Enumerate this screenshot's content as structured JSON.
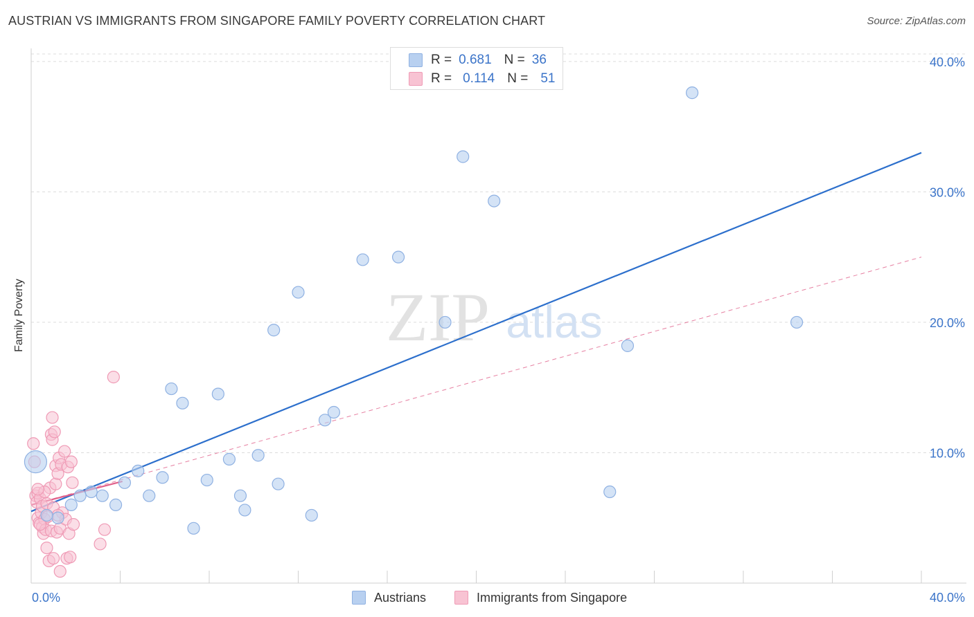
{
  "title": "AUSTRIAN VS IMMIGRANTS FROM SINGAPORE FAMILY POVERTY CORRELATION CHART",
  "source": "Source: ZipAtlas.com",
  "watermark": {
    "zip": "ZIP",
    "atlas": "atlas"
  },
  "legend_top": {
    "rows": [
      {
        "r_label": "R =",
        "r_value": "0.681",
        "n_label": "N =",
        "n_value": "36"
      },
      {
        "r_label": "R =",
        "r_value": "0.114",
        "n_label": "N =",
        "n_value": "51"
      }
    ]
  },
  "legend_bottom": {
    "items": [
      "Austrians",
      "Immigrants from Singapore"
    ]
  },
  "colors": {
    "blue_fill": "#b8d0f0",
    "blue_stroke": "#8fb1e2",
    "blue_line": "#2c6fcc",
    "pink_fill": "#f8c3d3",
    "pink_stroke": "#ef9ab5",
    "pink_line": "#e0608a",
    "axis_text": "#3b74c9",
    "grid": "#dcdcdc"
  },
  "chart_data": {
    "type": "scatter",
    "title": "AUSTRIAN VS IMMIGRANTS FROM SINGAPORE FAMILY POVERTY CORRELATION CHART",
    "xlabel": "",
    "ylabel": "Family Poverty",
    "xlim": [
      0,
      40
    ],
    "ylim": [
      0,
      41
    ],
    "x_tick_labels": [
      "0.0%",
      "40.0%"
    ],
    "y_ticks": [
      10,
      20,
      30,
      40
    ],
    "y_tick_labels": [
      "10.0%",
      "20.0%",
      "30.0%",
      "40.0%"
    ],
    "series": [
      {
        "name": "Austrians",
        "R": 0.681,
        "N": 36,
        "trend": {
          "x": [
            0,
            40
          ],
          "y": [
            5.5,
            33.0
          ],
          "style": "solid"
        },
        "points": [
          {
            "x": 0.2,
            "y": 9.3,
            "big": true
          },
          {
            "x": 1.2,
            "y": 5.0
          },
          {
            "x": 1.8,
            "y": 6.0
          },
          {
            "x": 2.2,
            "y": 6.7
          },
          {
            "x": 2.7,
            "y": 7.0
          },
          {
            "x": 3.2,
            "y": 6.7
          },
          {
            "x": 3.8,
            "y": 6.0
          },
          {
            "x": 4.2,
            "y": 7.7
          },
          {
            "x": 4.8,
            "y": 8.6
          },
          {
            "x": 5.3,
            "y": 6.7
          },
          {
            "x": 5.9,
            "y": 8.1
          },
          {
            "x": 6.3,
            "y": 14.9
          },
          {
            "x": 6.8,
            "y": 13.8
          },
          {
            "x": 7.3,
            "y": 4.2
          },
          {
            "x": 7.9,
            "y": 7.9
          },
          {
            "x": 8.4,
            "y": 14.5
          },
          {
            "x": 8.9,
            "y": 9.5
          },
          {
            "x": 9.4,
            "y": 6.7
          },
          {
            "x": 9.6,
            "y": 5.6
          },
          {
            "x": 10.2,
            "y": 9.8
          },
          {
            "x": 10.9,
            "y": 19.4
          },
          {
            "x": 11.1,
            "y": 7.6
          },
          {
            "x": 12.0,
            "y": 22.3
          },
          {
            "x": 12.6,
            "y": 5.2
          },
          {
            "x": 13.2,
            "y": 12.5
          },
          {
            "x": 13.6,
            "y": 13.1
          },
          {
            "x": 14.9,
            "y": 24.8
          },
          {
            "x": 16.5,
            "y": 25.0
          },
          {
            "x": 18.6,
            "y": 20.0
          },
          {
            "x": 19.4,
            "y": 32.7
          },
          {
            "x": 20.8,
            "y": 29.3
          },
          {
            "x": 26.0,
            "y": 7.0
          },
          {
            "x": 26.8,
            "y": 18.2
          },
          {
            "x": 29.7,
            "y": 37.6
          },
          {
            "x": 34.4,
            "y": 20.0
          },
          {
            "x": 0.7,
            "y": 5.2
          }
        ]
      },
      {
        "name": "Immigrants from Singapore",
        "R": 0.114,
        "N": 51,
        "trend": {
          "x": [
            0,
            4.1
          ],
          "y": [
            6.0,
            7.8
          ],
          "style": "solid"
        },
        "trend_extended": {
          "x": [
            0,
            40
          ],
          "y": [
            6.0,
            25.0
          ],
          "style": "dashed"
        },
        "points": [
          {
            "x": 0.1,
            "y": 10.7
          },
          {
            "x": 0.15,
            "y": 9.3
          },
          {
            "x": 0.2,
            "y": 6.7
          },
          {
            "x": 0.25,
            "y": 6.2
          },
          {
            "x": 0.3,
            "y": 6.9
          },
          {
            "x": 0.3,
            "y": 5.0
          },
          {
            "x": 0.35,
            "y": 4.6
          },
          {
            "x": 0.4,
            "y": 6.5
          },
          {
            "x": 0.45,
            "y": 5.4
          },
          {
            "x": 0.5,
            "y": 4.3
          },
          {
            "x": 0.5,
            "y": 5.9
          },
          {
            "x": 0.55,
            "y": 3.8
          },
          {
            "x": 0.6,
            "y": 4.9
          },
          {
            "x": 0.65,
            "y": 4.1
          },
          {
            "x": 0.7,
            "y": 6.1
          },
          {
            "x": 0.7,
            "y": 2.7
          },
          {
            "x": 0.75,
            "y": 5.1
          },
          {
            "x": 0.8,
            "y": 1.7
          },
          {
            "x": 0.85,
            "y": 7.3
          },
          {
            "x": 0.9,
            "y": 11.4
          },
          {
            "x": 0.9,
            "y": 4.0
          },
          {
            "x": 0.95,
            "y": 12.7
          },
          {
            "x": 0.95,
            "y": 11.0
          },
          {
            "x": 1.0,
            "y": 5.8
          },
          {
            "x": 1.0,
            "y": 1.9
          },
          {
            "x": 1.05,
            "y": 11.6
          },
          {
            "x": 1.1,
            "y": 9.0
          },
          {
            "x": 1.1,
            "y": 7.6
          },
          {
            "x": 1.15,
            "y": 3.9
          },
          {
            "x": 1.2,
            "y": 8.4
          },
          {
            "x": 1.25,
            "y": 9.6
          },
          {
            "x": 1.3,
            "y": 4.2
          },
          {
            "x": 1.3,
            "y": 0.9
          },
          {
            "x": 1.35,
            "y": 9.1
          },
          {
            "x": 1.4,
            "y": 5.4
          },
          {
            "x": 1.5,
            "y": 10.1
          },
          {
            "x": 1.55,
            "y": 4.9
          },
          {
            "x": 1.6,
            "y": 1.9
          },
          {
            "x": 1.65,
            "y": 8.9
          },
          {
            "x": 1.7,
            "y": 3.8
          },
          {
            "x": 1.75,
            "y": 2.0
          },
          {
            "x": 1.8,
            "y": 9.3
          },
          {
            "x": 1.85,
            "y": 7.7
          },
          {
            "x": 1.9,
            "y": 4.5
          },
          {
            "x": 3.1,
            "y": 3.0
          },
          {
            "x": 3.3,
            "y": 4.1
          },
          {
            "x": 3.7,
            "y": 15.8
          },
          {
            "x": 0.4,
            "y": 4.5
          },
          {
            "x": 0.6,
            "y": 7.0
          },
          {
            "x": 1.2,
            "y": 5.2
          },
          {
            "x": 0.3,
            "y": 7.2
          }
        ]
      }
    ]
  }
}
